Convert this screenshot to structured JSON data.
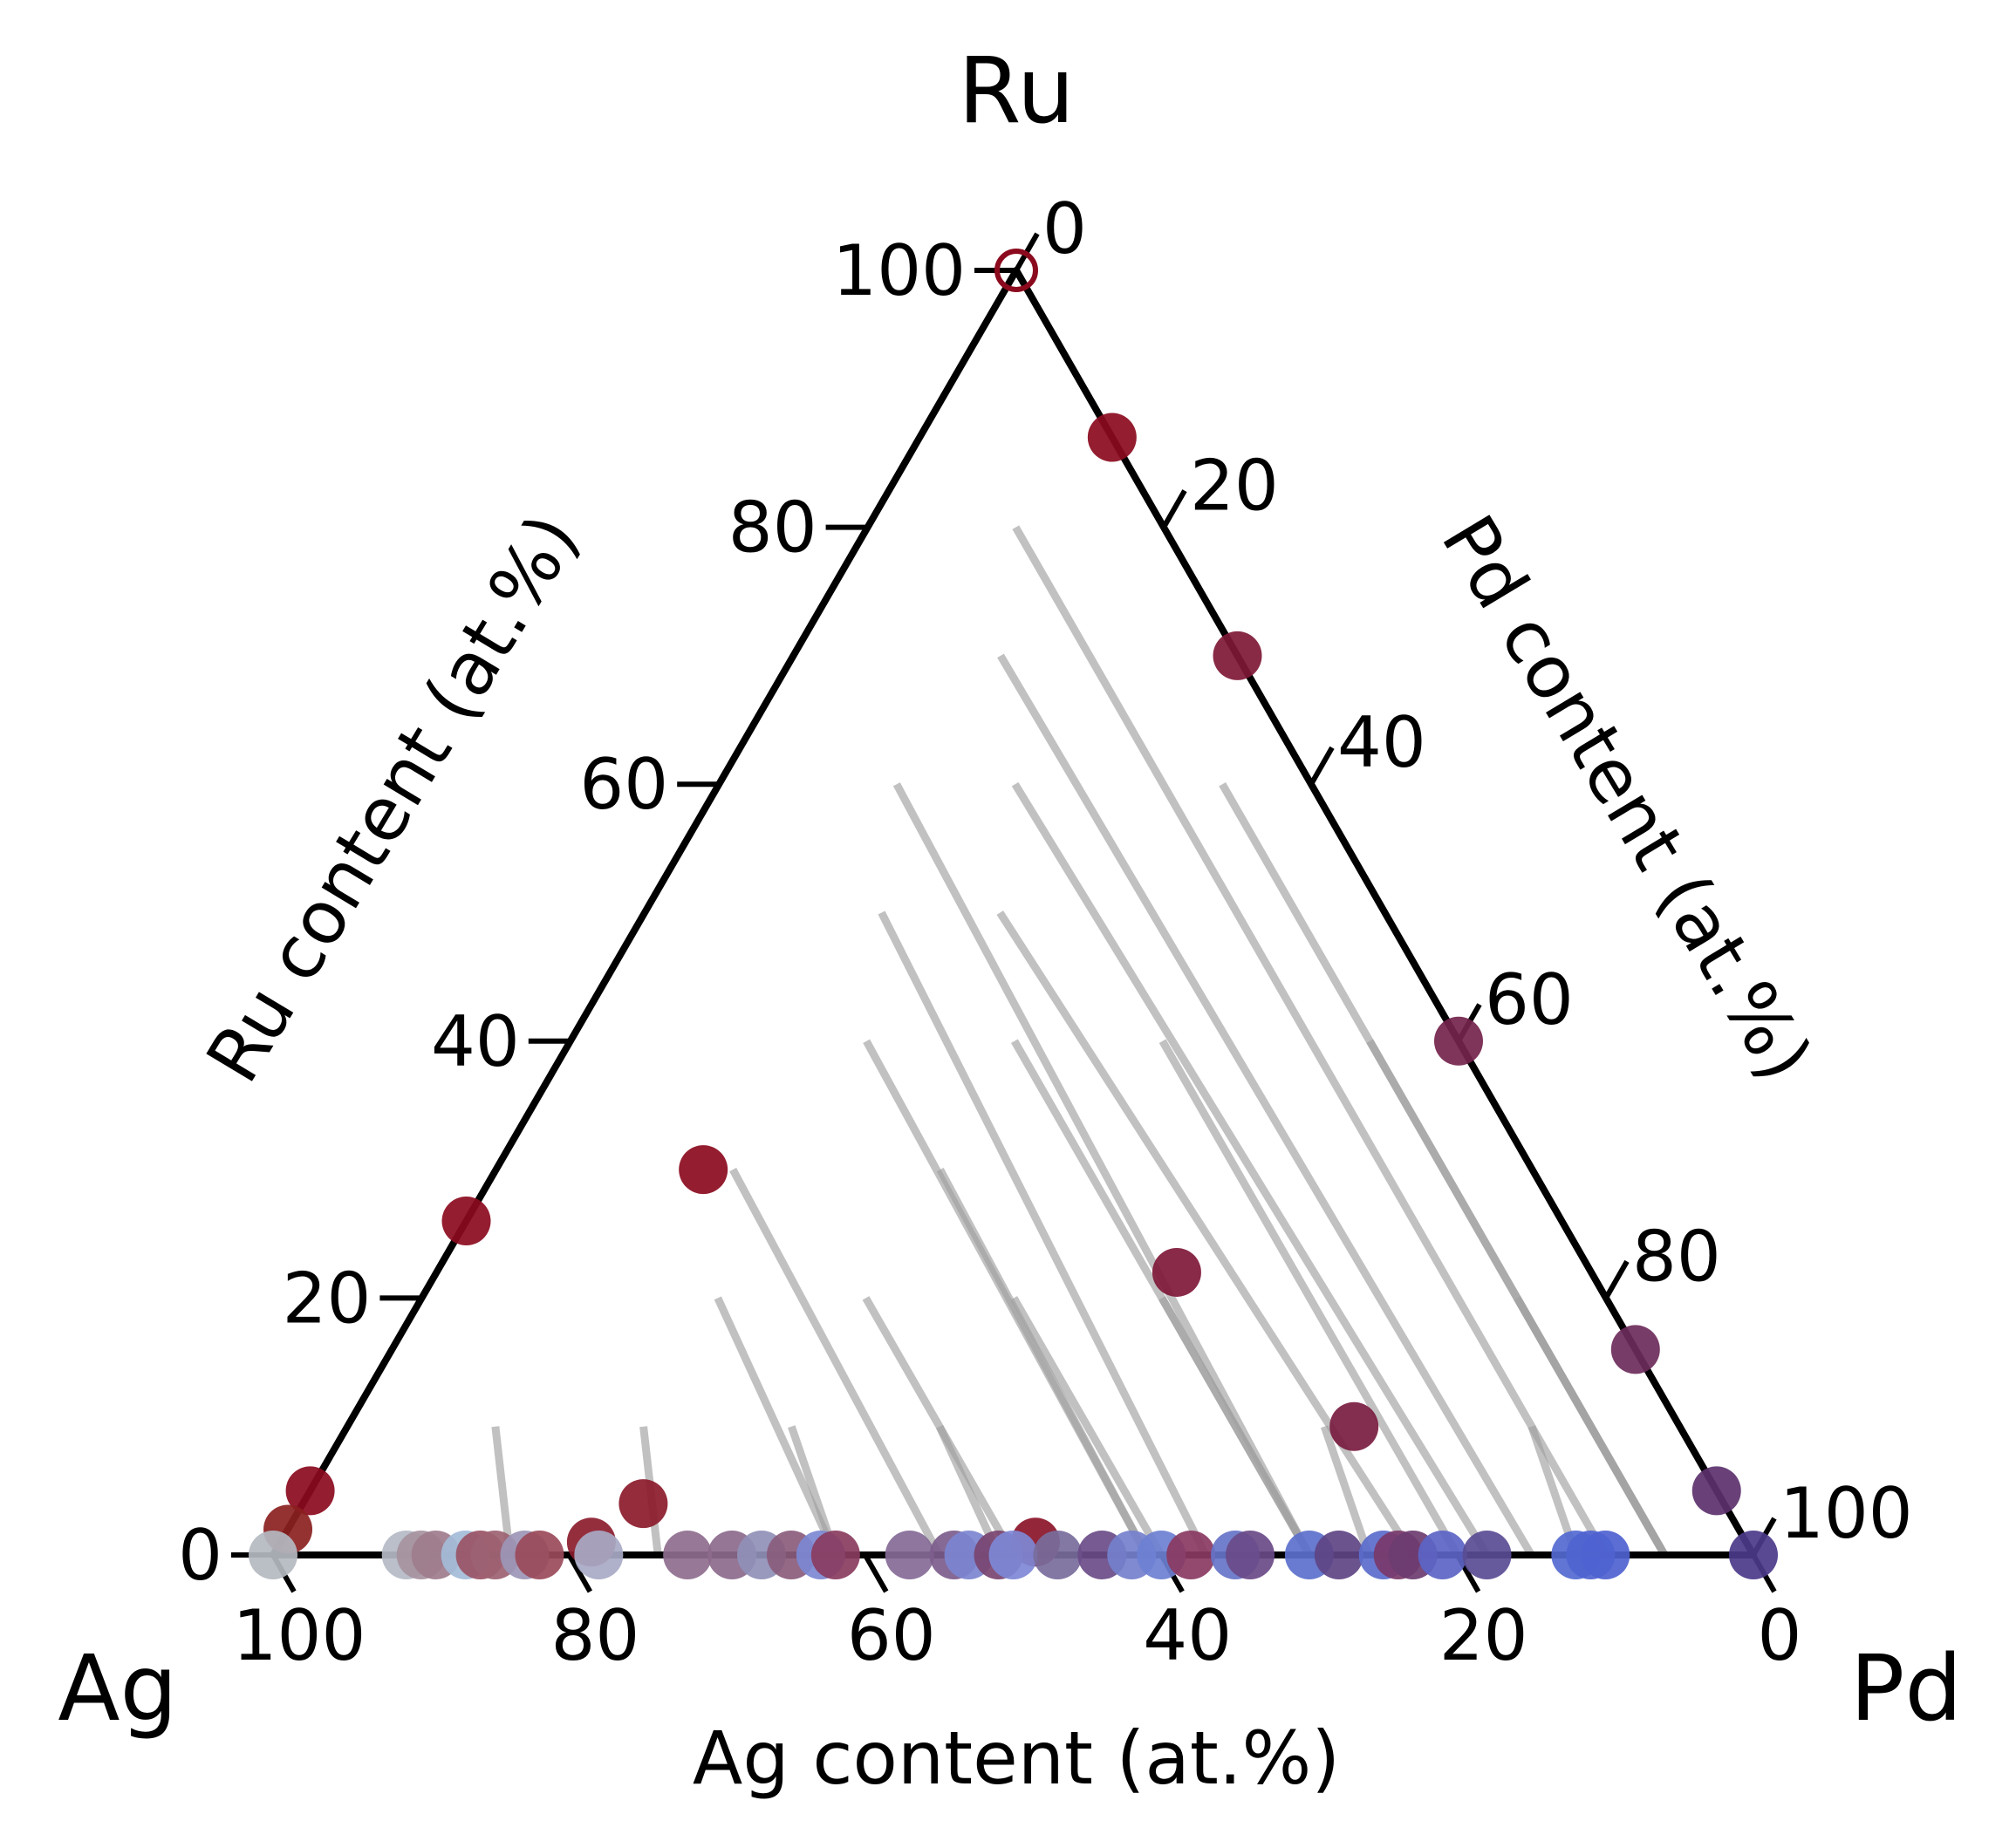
{
  "chart_data": {
    "type": "ternary-scatter",
    "title": "",
    "corners": {
      "top": "Ru",
      "left": "Ag",
      "right": "Pd"
    },
    "axes": {
      "left": {
        "label": "Ru content (at.%)",
        "ticks": [
          "0",
          "20",
          "40",
          "60",
          "80",
          "100"
        ]
      },
      "right": {
        "label": "Pd content (at.%)",
        "ticks": [
          "0",
          "20",
          "40",
          "60",
          "80",
          "100"
        ]
      },
      "bottom": {
        "label": "Ag content (at.%)",
        "ticks": [
          "100",
          "80",
          "60",
          "40",
          "20",
          "0"
        ]
      }
    },
    "colors": {
      "frame": "#000000",
      "tieline": "#a0a0a0",
      "ru_rich": "#8b0a1e",
      "pd_rich": "#4b2f8a",
      "ag_rich": "#b6bcc8",
      "pd_side_fcc": "#4f6bd2"
    },
    "tielines": [
      {
        "p1": {
          "ag": 6,
          "ru": 60
        },
        "p2": {
          "ag": 6,
          "ru": 0
        }
      },
      {
        "p1": {
          "ag": 6,
          "ru": 40
        },
        "p2": {
          "ag": 6,
          "ru": 0
        }
      },
      {
        "p1": {
          "ag": 6,
          "ru": 20
        },
        "p2": {
          "ag": 6,
          "ru": 0
        }
      },
      {
        "p1": {
          "ag": 10,
          "ru": 80
        },
        "p2": {
          "ag": 10,
          "ru": 0
        }
      },
      {
        "p1": {
          "ag": 16,
          "ru": 70
        },
        "p2": {
          "ag": 15,
          "ru": 0
        }
      },
      {
        "p1": {
          "ag": 20,
          "ru": 60
        },
        "p2": {
          "ag": 18,
          "ru": 0
        }
      },
      {
        "p1": {
          "ag": 26,
          "ru": 50
        },
        "p2": {
          "ag": 23,
          "ru": 0
        }
      },
      {
        "p1": {
          "ag": 40,
          "ru": 40
        },
        "p2": {
          "ag": 41,
          "ru": 0
        }
      },
      {
        "p1": {
          "ag": 34,
          "ru": 50
        },
        "p2": {
          "ag": 37,
          "ru": 0
        }
      },
      {
        "p1": {
          "ag": 28,
          "ru": 60
        },
        "p2": {
          "ag": 30,
          "ru": 0
        }
      },
      {
        "p1": {
          "ag": 20,
          "ru": 40
        },
        "p2": {
          "ag": 20,
          "ru": 0
        }
      },
      {
        "p1": {
          "ag": 30,
          "ru": 40
        },
        "p2": {
          "ag": 30,
          "ru": 0
        }
      },
      {
        "p1": {
          "ag": 40,
          "ru": 30
        },
        "p2": {
          "ag": 41,
          "ru": 0
        }
      },
      {
        "p1": {
          "ag": 54,
          "ru": 30
        },
        "p2": {
          "ag": 55,
          "ru": 0
        }
      },
      {
        "p1": {
          "ag": 60,
          "ru": 20
        },
        "p2": {
          "ag": 62,
          "ru": 0
        }
      },
      {
        "p1": {
          "ag": 70,
          "ru": 10
        },
        "p2": {
          "ag": 74,
          "ru": 0
        }
      },
      {
        "p1": {
          "ag": 30,
          "ru": 20
        },
        "p2": {
          "ag": 30,
          "ru": 0
        }
      },
      {
        "p1": {
          "ag": 40,
          "ru": 20
        },
        "p2": {
          "ag": 40,
          "ru": 0
        }
      },
      {
        "p1": {
          "ag": 50,
          "ru": 20
        },
        "p2": {
          "ag": 50,
          "ru": 0
        }
      },
      {
        "p1": {
          "ag": 50,
          "ru": 10
        },
        "p2": {
          "ag": 51,
          "ru": 0
        }
      },
      {
        "p1": {
          "ag": 60,
          "ru": 10
        },
        "p2": {
          "ag": 62,
          "ru": 0
        }
      },
      {
        "p1": {
          "ag": 80,
          "ru": 10
        },
        "p2": {
          "ag": 84,
          "ru": 0
        }
      },
      {
        "p1": {
          "ag": 10,
          "ru": 10
        },
        "p2": {
          "ag": 12,
          "ru": 0
        }
      },
      {
        "p1": {
          "ag": 24,
          "ru": 10
        },
        "p2": {
          "ag": 26,
          "ru": 0
        }
      }
    ],
    "points": [
      {
        "ag": 0,
        "ru": 100,
        "pd": 0,
        "color": "#8b0a1e",
        "hollow": true
      },
      {
        "ag": 0,
        "ru": 87,
        "pd": 13,
        "color": "#8b0a1e"
      },
      {
        "ag": 0,
        "ru": 70,
        "pd": 30,
        "color": "#7e1836"
      },
      {
        "ag": 0,
        "ru": 40,
        "pd": 60,
        "color": "#74234c"
      },
      {
        "ag": 0,
        "ru": 16,
        "pd": 84,
        "color": "#6c2b5b"
      },
      {
        "ag": 0,
        "ru": 5,
        "pd": 95,
        "color": "#5c316c"
      },
      {
        "ag": 0,
        "ru": 0,
        "pd": 100,
        "color": "#4b3a8a"
      },
      {
        "ag": 74,
        "ru": 26,
        "pd": 0,
        "color": "#8b0a1e"
      },
      {
        "ag": 95,
        "ru": 5,
        "pd": 0,
        "color": "#8b0a1e"
      },
      {
        "ag": 98,
        "ru": 2,
        "pd": 0,
        "color": "#8b2020"
      },
      {
        "ag": 100,
        "ru": 0,
        "pd": 0,
        "color": "#b4b8c0"
      },
      {
        "ag": 56,
        "ru": 30,
        "pd": 14,
        "color": "#8b0a1e"
      },
      {
        "ag": 28,
        "ru": 22,
        "pd": 50,
        "color": "#7e1838"
      },
      {
        "ag": 22,
        "ru": 10,
        "pd": 68,
        "color": "#7a1c40"
      },
      {
        "ag": 73,
        "ru": 4,
        "pd": 23,
        "color": "#8b1a2a"
      },
      {
        "ag": 48,
        "ru": 1,
        "pd": 51,
        "color": "#8b1428"
      },
      {
        "ag": 78,
        "ru": 1,
        "pd": 21,
        "color": "#8b1c2c"
      },
      {
        "ag": 91,
        "ru": 0,
        "pd": 9,
        "color": "#b4bac6"
      },
      {
        "ag": 90,
        "ru": 0,
        "pd": 10,
        "color": "#a6939f"
      },
      {
        "ag": 89,
        "ru": 0,
        "pd": 11,
        "color": "#9e7c8c"
      },
      {
        "ag": 87,
        "ru": 0,
        "pd": 13,
        "color": "#a4bcd8"
      },
      {
        "ag": 86,
        "ru": 0,
        "pd": 14,
        "color": "#9a5466"
      },
      {
        "ag": 85,
        "ru": 0,
        "pd": 15,
        "color": "#9c6272"
      },
      {
        "ag": 83,
        "ru": 0,
        "pd": 17,
        "color": "#9c96b6"
      },
      {
        "ag": 82,
        "ru": 0,
        "pd": 18,
        "color": "#9a4a5a"
      },
      {
        "ag": 78,
        "ru": 0,
        "pd": 22,
        "color": "#a8aac6"
      },
      {
        "ag": 72,
        "ru": 0,
        "pd": 28,
        "color": "#8e6e8e"
      },
      {
        "ag": 69,
        "ru": 0,
        "pd": 31,
        "color": "#8c6a8c"
      },
      {
        "ag": 67,
        "ru": 0,
        "pd": 33,
        "color": "#9090b8"
      },
      {
        "ag": 65,
        "ru": 0,
        "pd": 35,
        "color": "#8a5c7c"
      },
      {
        "ag": 63,
        "ru": 0,
        "pd": 37,
        "color": "#7c88d2"
      },
      {
        "ag": 62,
        "ru": 0,
        "pd": 38,
        "color": "#8a3c60"
      },
      {
        "ag": 57,
        "ru": 0,
        "pd": 43,
        "color": "#846a96"
      },
      {
        "ag": 54,
        "ru": 0,
        "pd": 46,
        "color": "#7c5c8c"
      },
      {
        "ag": 53,
        "ru": 0,
        "pd": 47,
        "color": "#7c86d0"
      },
      {
        "ag": 51,
        "ru": 0,
        "pd": 49,
        "color": "#7a4470"
      },
      {
        "ag": 50,
        "ru": 0,
        "pd": 50,
        "color": "#7e88d6"
      },
      {
        "ag": 47,
        "ru": 0,
        "pd": 53,
        "color": "#786c9c"
      },
      {
        "ag": 44,
        "ru": 0,
        "pd": 56,
        "color": "#6a4c88"
      },
      {
        "ag": 42,
        "ru": 0,
        "pd": 58,
        "color": "#7480cc"
      },
      {
        "ag": 40,
        "ru": 0,
        "pd": 60,
        "color": "#6c80d2"
      },
      {
        "ag": 38,
        "ru": 0,
        "pd": 62,
        "color": "#8a3a62"
      },
      {
        "ag": 35,
        "ru": 0,
        "pd": 65,
        "color": "#6674c8"
      },
      {
        "ag": 34,
        "ru": 0,
        "pd": 66,
        "color": "#6a4a88"
      },
      {
        "ag": 30,
        "ru": 0,
        "pd": 70,
        "color": "#5c70cc"
      },
      {
        "ag": 28,
        "ru": 0,
        "pd": 72,
        "color": "#5e4484"
      },
      {
        "ag": 25,
        "ru": 0,
        "pd": 75,
        "color": "#5b6ccc"
      },
      {
        "ag": 24,
        "ru": 0,
        "pd": 76,
        "color": "#7a3a6a"
      },
      {
        "ag": 23,
        "ru": 0,
        "pd": 77,
        "color": "#6c3c70"
      },
      {
        "ag": 21,
        "ru": 0,
        "pd": 79,
        "color": "#5c64c6"
      },
      {
        "ag": 18,
        "ru": 0,
        "pd": 82,
        "color": "#5a4c94"
      },
      {
        "ag": 12,
        "ru": 0,
        "pd": 88,
        "color": "#546ad0"
      },
      {
        "ag": 11,
        "ru": 0,
        "pd": 89,
        "color": "#5064d0"
      },
      {
        "ag": 10,
        "ru": 0,
        "pd": 90,
        "color": "#4e62d0"
      }
    ]
  }
}
